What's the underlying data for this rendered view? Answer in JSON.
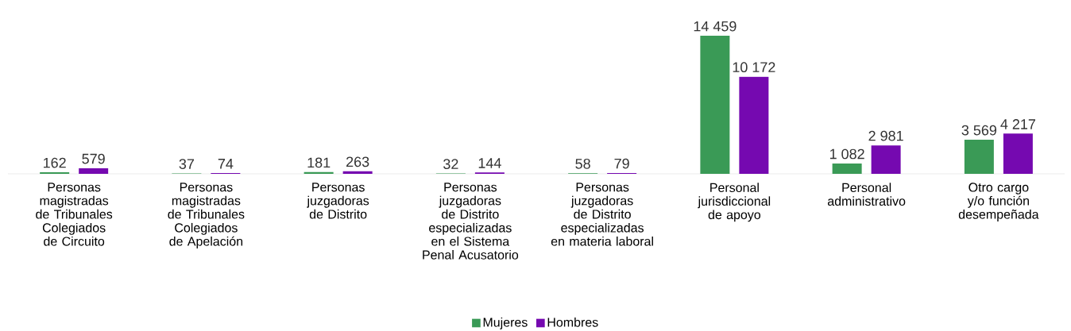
{
  "chart_data": {
    "type": "bar",
    "categories": [
      "Personas magistradas de Tribunales Colegiados de Circuito",
      "Personas magistradas de Tribunales Colegiados de Apelación",
      "Personas juzgadoras de Distrito",
      "Personas juzgadoras de Distrito especializadas en el Sistema Penal Acusatorio",
      "Personas juzgadoras de Distrito especializadas en materia laboral",
      "Personal jurisdiccional de apoyo",
      "Personal administrativo",
      "Otro cargo y/o función desempeñada"
    ],
    "series": [
      {
        "name": "Mujeres",
        "color": "#3a9a56",
        "values": [
          162,
          37,
          181,
          32,
          58,
          14459,
          1082,
          3569
        ],
        "value_labels": [
          "162",
          "37",
          "181",
          "32",
          "58",
          "14 459",
          "1 082",
          "3 569"
        ]
      },
      {
        "name": "Hombres",
        "color": "#7509b0",
        "values": [
          579,
          74,
          263,
          144,
          79,
          10172,
          2981,
          4217
        ],
        "value_labels": [
          "579",
          "74",
          "263",
          "144",
          "79",
          "10 172",
          "2 981",
          "4 217"
        ]
      }
    ],
    "legend": "bottom"
  }
}
